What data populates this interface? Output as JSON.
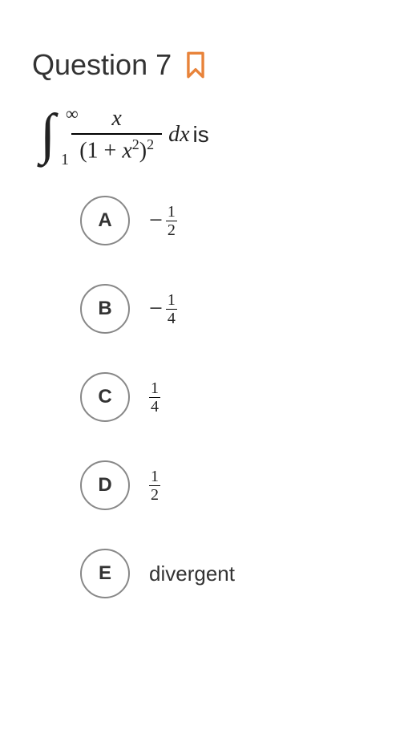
{
  "header": {
    "title": "Question 7",
    "bookmark_color": "#e8833a",
    "bookmark_stroke_width": 3
  },
  "equation": {
    "integral_symbol": "∫",
    "lower_limit": "1",
    "upper_limit": "∞",
    "numerator": "x",
    "denominator_open": "(1 + ",
    "denominator_var": "x",
    "denominator_sup1": "2",
    "denominator_close": ")",
    "denominator_sup2": "2",
    "dx": "dx",
    "suffix": " is"
  },
  "choices": [
    {
      "letter": "A",
      "type": "frac",
      "sign": "−",
      "num": "1",
      "den": "2"
    },
    {
      "letter": "B",
      "type": "frac",
      "sign": "−",
      "num": "1",
      "den": "4"
    },
    {
      "letter": "C",
      "type": "frac",
      "sign": "",
      "num": "1",
      "den": "4"
    },
    {
      "letter": "D",
      "type": "frac",
      "sign": "",
      "num": "1",
      "den": "2"
    },
    {
      "letter": "E",
      "type": "text",
      "text": "divergent"
    }
  ],
  "styles": {
    "circle_border_color": "#888888",
    "text_color": "#333333",
    "background": "#ffffff"
  }
}
